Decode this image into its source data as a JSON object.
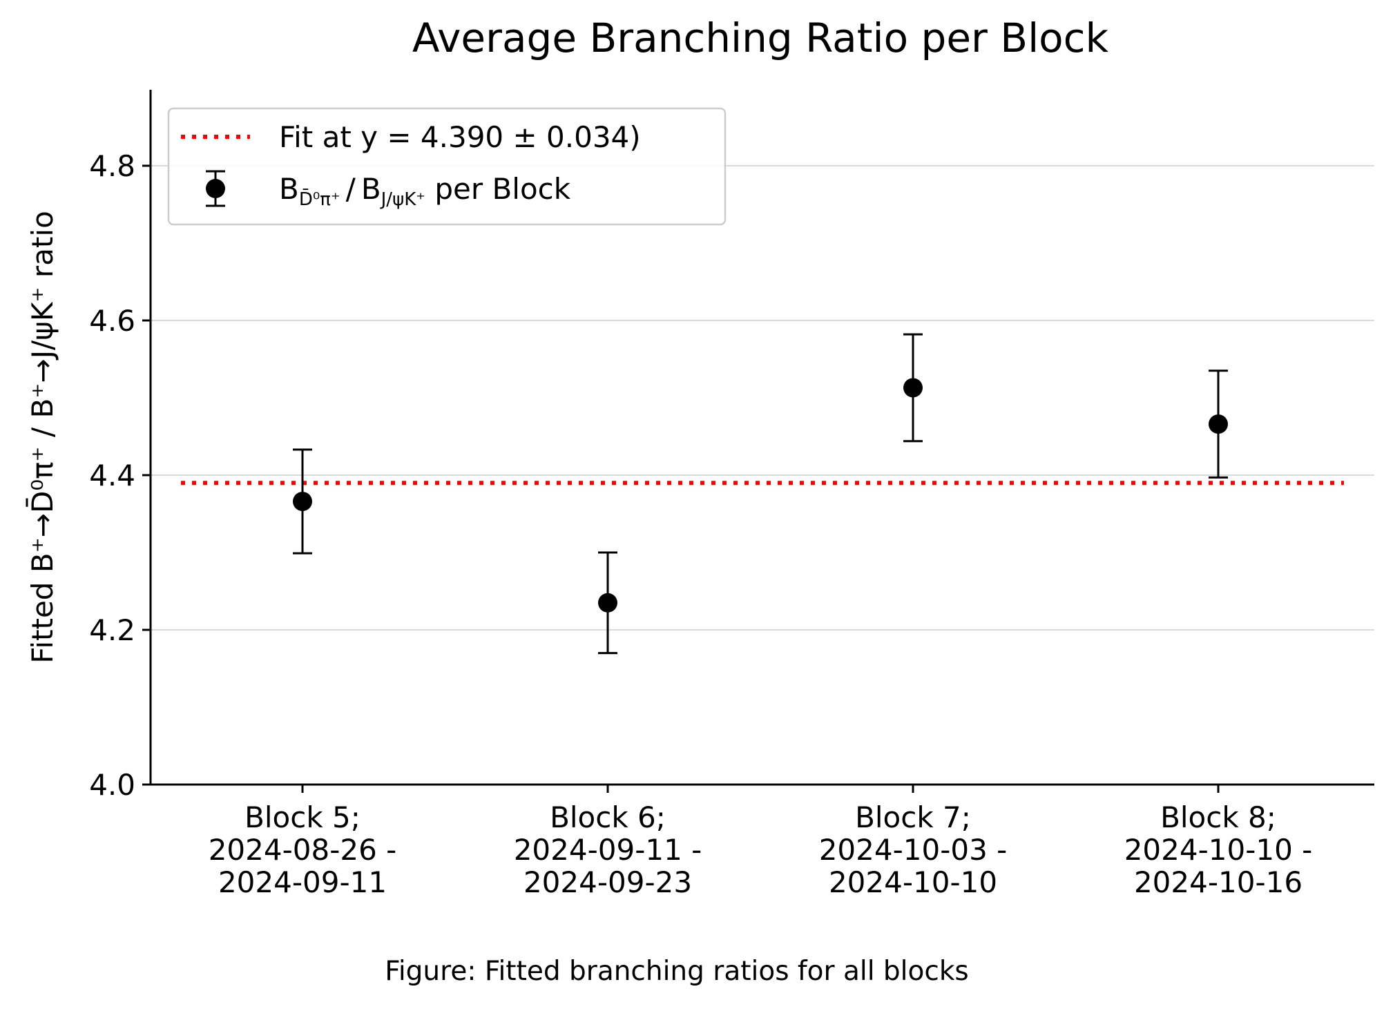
{
  "chart_data": {
    "type": "scatter",
    "title": "Average Branching Ratio per Block",
    "ylabel": "Fitted B⁺→D̄⁰π⁺ / B⁺→J/ψK⁺ ratio",
    "xlabel": "",
    "ylim": [
      4.0,
      4.9
    ],
    "yticks": [
      "4.0",
      "4.2",
      "4.4",
      "4.6",
      "4.8"
    ],
    "ytick_values": [
      4.0,
      4.2,
      4.4,
      4.6,
      4.8
    ],
    "grid": "horizontal",
    "legend_position": "top-left",
    "categories": [
      {
        "line1": "Block 5;",
        "line2": "2024-08-26 -",
        "line3": "2024-09-11"
      },
      {
        "line1": "Block 6;",
        "line2": "2024-09-11 -",
        "line3": "2024-09-23"
      },
      {
        "line1": "Block 7;",
        "line2": "2024-10-03 -",
        "line3": "2024-10-10"
      },
      {
        "line1": "Block 8;",
        "line2": "2024-10-10 -",
        "line3": "2024-10-16"
      }
    ],
    "series": [
      {
        "name": "B_{D̄⁰π⁺} / B_{J/ψK⁺} per Block",
        "values": [
          4.366,
          4.235,
          4.513,
          4.466
        ],
        "errors": [
          0.067,
          0.065,
          0.069,
          0.069
        ],
        "color": "#000000"
      }
    ],
    "fit_line": {
      "label": "Fit at y = 4.390 ± 0.034)",
      "value": 4.39,
      "color": "#ff0000",
      "style": "dotted"
    },
    "legend": {
      "fit_label": "Fit at y = 4.390 ± 0.034)",
      "series_label_b1": "B",
      "series_label_sub1": "D̄⁰π⁺",
      "series_label_slash": "/",
      "series_label_b2": "B",
      "series_label_sub2": "J/ψK⁺",
      "series_label_rest": " per Block"
    }
  },
  "caption": "Figure: Fitted branching ratios for all blocks"
}
